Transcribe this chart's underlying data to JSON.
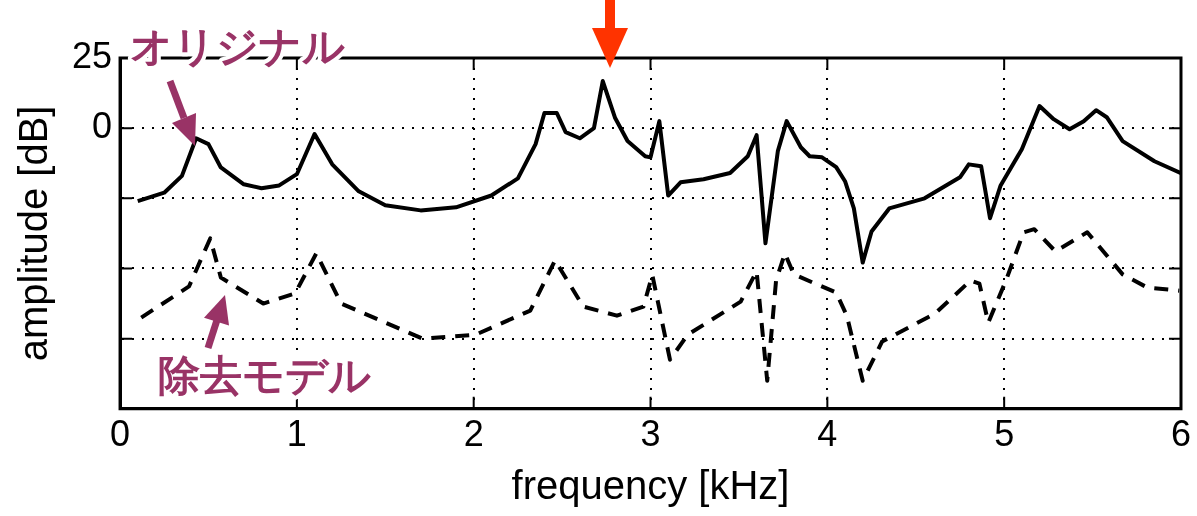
{
  "chart_data": {
    "type": "line",
    "xlabel": "frequency [kHz]",
    "ylabel": "amplitude [dB]",
    "xlim": [
      0,
      6
    ],
    "xticks": [
      0,
      1,
      2,
      3,
      4,
      5,
      6
    ],
    "ylim": [
      -100,
      25
    ],
    "yticks": [
      {
        "value": -100,
        "label": null
      },
      {
        "value": -75,
        "label": null
      },
      {
        "value": -50,
        "label": null
      },
      {
        "value": -25,
        "label": null
      },
      0,
      25
    ],
    "grid": true,
    "legend": false,
    "marker": "none",
    "series": [
      {
        "name": "オリジナル",
        "color": "#000000",
        "line_style": "solid",
        "x": [
          0.1,
          0.25,
          0.35,
          0.43,
          0.5,
          0.57,
          0.7,
          0.8,
          0.9,
          1.0,
          1.1,
          1.2,
          1.35,
          1.5,
          1.7,
          1.9,
          2.1,
          2.25,
          2.35,
          2.4,
          2.47,
          2.52,
          2.6,
          2.68,
          2.73,
          2.8,
          2.87,
          2.97,
          3.0,
          3.05,
          3.1,
          3.17,
          3.3,
          3.45,
          3.55,
          3.6,
          3.65,
          3.72,
          3.77,
          3.85,
          3.9,
          3.97,
          4.05,
          4.1,
          4.15,
          4.2,
          4.25,
          4.35,
          4.55,
          4.75,
          4.8,
          4.87,
          4.92,
          4.98,
          5.1,
          5.2,
          5.28,
          5.37,
          5.45,
          5.52,
          5.58,
          5.67,
          5.85,
          6.0
        ],
        "values": [
          -26,
          -23,
          -17,
          -3.6,
          -5.7,
          -14,
          -20,
          -21.4,
          -20.4,
          -16.4,
          -2.1,
          -12.9,
          -22.5,
          -27.5,
          -29.3,
          -28.2,
          -24,
          -17.9,
          -5.7,
          5.4,
          5.4,
          -1.4,
          -3.6,
          0,
          16.8,
          3.6,
          -4.6,
          -10,
          -10.4,
          2.5,
          -24,
          -19.3,
          -18.2,
          -16,
          -10,
          -2.5,
          -41,
          -8.2,
          2.5,
          -6.8,
          -10,
          -10.4,
          -13.9,
          -18.9,
          -28.6,
          -47.9,
          -36.8,
          -28.6,
          -25,
          -17.5,
          -12.9,
          -13.6,
          -32.1,
          -20.4,
          -7.5,
          7.9,
          3.2,
          -0.4,
          2.5,
          6.4,
          3.9,
          -4.6,
          -11.8,
          -16
        ]
      },
      {
        "name": "除去モデル",
        "color": "#000000",
        "line_style": "dashed",
        "x": [
          0.12,
          0.39,
          0.51,
          0.57,
          0.81,
          0.99,
          1.11,
          1.25,
          1.71,
          2.01,
          2.32,
          2.46,
          2.62,
          2.81,
          2.96,
          3.01,
          3.11,
          3.21,
          3.51,
          3.6,
          3.66,
          3.71,
          3.76,
          3.81,
          4.05,
          4.11,
          4.2,
          4.31,
          4.61,
          4.81,
          4.86,
          4.91,
          5.01,
          5.11,
          5.17,
          5.29,
          5.47,
          5.67,
          5.81,
          5.99
        ],
        "values": [
          -67.5,
          -56.4,
          -39.3,
          -53.2,
          -62.5,
          -58.9,
          -44.6,
          -62.5,
          -75,
          -73.6,
          -65,
          -47.1,
          -63.6,
          -66.8,
          -63.6,
          -52.3,
          -82.5,
          -73.6,
          -61.8,
          -51,
          -90,
          -54.3,
          -44.6,
          -52.1,
          -58.6,
          -66.8,
          -90,
          -76,
          -66,
          -54.3,
          -55.4,
          -69.3,
          -54.3,
          -37.1,
          -36,
          -43.9,
          -37.1,
          -52.1,
          -56.8,
          -57.9
        ]
      }
    ]
  }
}
